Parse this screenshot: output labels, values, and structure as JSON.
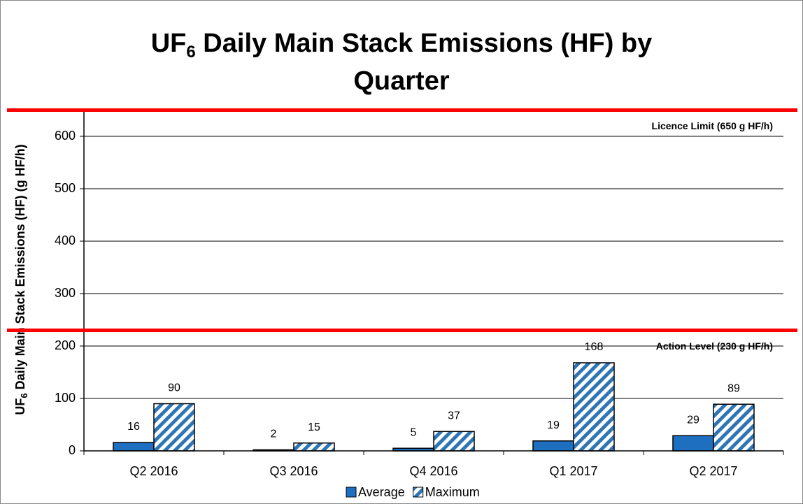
{
  "chart_data": {
    "type": "bar",
    "title": {
      "line1": [
        "UF",
        "6",
        " Daily Main Stack Emissions (HF) by"
      ],
      "line2": "Quarter"
    },
    "y_label": [
      "UF",
      "6",
      " Daily Main Stack Emissions (HF)  (g HF/h)"
    ],
    "categories": [
      "Q2 2016",
      "Q3 2016",
      "Q4 2016",
      "Q1 2017",
      "Q2 2017"
    ],
    "series": [
      {
        "name": "Average",
        "color": "#1f6fc0",
        "pattern": "solid",
        "values": [
          16,
          2,
          5,
          19,
          29
        ]
      },
      {
        "name": "Maximum",
        "color": "#2e75b6",
        "pattern": "hatch",
        "values": [
          90,
          15,
          37,
          168,
          89
        ]
      }
    ],
    "ylim": [
      0,
      650
    ],
    "yticks": [
      0,
      100,
      200,
      300,
      400,
      500,
      600
    ],
    "grid": true,
    "reference_lines": [
      {
        "value": 650,
        "label": "Licence Limit (650 g HF/h)",
        "color": "#ff0000"
      },
      {
        "value": 230,
        "label": "Action Level (230 g HF/h)",
        "color": "#ff0000"
      }
    ],
    "legend": "bottom"
  }
}
